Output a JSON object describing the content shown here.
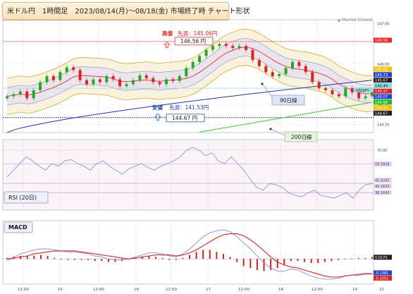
{
  "title": "米ドル円　1時間足　2023/08/14(月)～08/18(金) 市場終了時 チャート形状",
  "market_status": "Market Closed",
  "chart_data": [
    {
      "type": "candlestick",
      "instrument": "USDJPY",
      "x_ticks": [
        "12:00",
        "15",
        "12:00",
        "16",
        "12:00",
        "17",
        "12:00",
        "18",
        "12:00",
        "19",
        "21"
      ],
      "y_ticks": [
        147.0,
        146.0,
        145.0,
        144.5
      ],
      "ylim": [
        144.3,
        147.1
      ],
      "price_tags": [
        {
          "value": "146.56",
          "bg": "#ff2222",
          "fg": "#ffffff"
        },
        {
          "value": "145.82",
          "bg": "#f2c200",
          "fg": "#ffffff"
        },
        {
          "value": "145.73",
          "bg": "#2244cc",
          "fg": "#ffffff"
        },
        {
          "value": "145.67",
          "bg": "#222222",
          "fg": "#ffffff"
        },
        {
          "value": "145.40",
          "bg": "#88dddd",
          "fg": "#000000"
        },
        {
          "value": "145.37",
          "bg": "#dd2222",
          "fg": "#ffffff"
        },
        {
          "value": "145.07",
          "bg": "#2244cc",
          "fg": "#ffffff"
        },
        {
          "value": "144.96",
          "bg": "#22bb22",
          "fg": "#ffffff"
        },
        {
          "value": "144.92",
          "bg": "#f2c200",
          "fg": "#ffffff"
        },
        {
          "value": "144.67",
          "bg": "#222222",
          "fg": "#ffffff"
        }
      ],
      "symbol_label": "USDJPY",
      "high": {
        "label": "高値",
        "prev_week": "先週：145.06円",
        "value": "146.56 円",
        "price": 146.56
      },
      "low": {
        "label": "安値",
        "prev_week": "先週：141.53円",
        "value": "144.67 円",
        "price": 144.67
      },
      "callouts": {
        "ma90": "90日線",
        "ma200": "200日線"
      },
      "closes": [
        145.2,
        145.25,
        145.32,
        145.15,
        145.35,
        145.55,
        145.7,
        145.6,
        145.8,
        145.92,
        145.85,
        145.6,
        145.5,
        145.62,
        145.55,
        145.7,
        145.62,
        145.45,
        145.5,
        145.6,
        145.72,
        145.65,
        145.55,
        145.5,
        145.62,
        145.58,
        145.7,
        145.9,
        146.05,
        146.2,
        146.35,
        146.45,
        146.5,
        146.45,
        146.4,
        146.45,
        146.35,
        146.1,
        145.95,
        145.8,
        145.7,
        145.75,
        145.9,
        146.05,
        145.95,
        145.8,
        145.55,
        145.4,
        145.35,
        145.25,
        145.2,
        145.4,
        145.3,
        145.15,
        145.2,
        145.35
      ],
      "colors": {
        "up": "#22aa22",
        "down": "#dd2222",
        "ma_short": "#dd3333",
        "ma90": "#2233bb",
        "ma200": "#33cc33",
        "bb_outer": "#d4a830",
        "bb_mid": "#9999cc"
      }
    },
    {
      "type": "line",
      "title": "RSI (20日)",
      "y_ticks": [
        70.0
      ],
      "price_tags": [
        {
          "value": "59.5858",
          "bg": "#ddddee",
          "fg": "#662266"
        },
        {
          "value": "45.9265",
          "bg": "#ddddee",
          "fg": "#662266"
        },
        {
          "value": "45.1633",
          "bg": "#ddddee",
          "fg": "#662266"
        },
        {
          "value": "38.1643",
          "bg": "#ddddee",
          "fg": "#662266"
        }
      ],
      "ylim": [
        25,
        78
      ],
      "values": [
        50,
        55,
        60,
        65,
        62,
        58,
        55,
        60,
        58,
        62,
        63,
        60,
        58,
        55,
        60,
        62,
        58,
        55,
        52,
        56,
        58,
        60,
        57,
        55,
        58,
        60,
        62,
        65,
        70,
        72,
        70,
        66,
        68,
        62,
        60,
        65,
        60,
        55,
        48,
        42,
        40,
        45,
        44,
        42,
        38,
        36,
        35,
        38,
        40,
        36,
        35,
        34,
        36,
        38,
        34,
        40,
        44,
        45
      ],
      "reference_lines": [
        59.5858,
        45.1633,
        38.1643
      ],
      "color": "#8899cc"
    },
    {
      "type": "line",
      "title": "MACD",
      "price_tags": [
        {
          "value": "0.0170",
          "bg": "#222222",
          "fg": "#ffffff"
        },
        {
          "value": "-0.1381",
          "bg": "#2244cc",
          "fg": "#ffffff"
        },
        {
          "value": "-0.1551",
          "bg": "#dd2222",
          "fg": "#ffffff"
        }
      ],
      "ylim": [
        -0.25,
        0.38
      ],
      "macd": [
        -0.02,
        0.02,
        0.05,
        0.07,
        0.09,
        0.1,
        0.1,
        0.09,
        0.08,
        0.07,
        0.07,
        0.06,
        0.05,
        0.03,
        0.02,
        0.0,
        -0.01,
        -0.01,
        0.0,
        0.02,
        0.04,
        0.06,
        0.06,
        0.05,
        0.03,
        0.02,
        0.05,
        0.1,
        0.16,
        0.22,
        0.26,
        0.28,
        0.29,
        0.27,
        0.22,
        0.16,
        0.1,
        0.03,
        -0.04,
        -0.09,
        -0.12,
        -0.12,
        -0.1,
        -0.11,
        -0.14,
        -0.17,
        -0.19,
        -0.2,
        -0.2,
        -0.19,
        -0.17,
        -0.16,
        -0.15,
        -0.14,
        -0.14
      ],
      "signal": [
        0.0,
        0.01,
        0.02,
        0.03,
        0.05,
        0.06,
        0.07,
        0.08,
        0.08,
        0.08,
        0.08,
        0.07,
        0.06,
        0.05,
        0.04,
        0.03,
        0.02,
        0.01,
        0.0,
        0.01,
        0.02,
        0.03,
        0.04,
        0.04,
        0.04,
        0.03,
        0.04,
        0.06,
        0.09,
        0.13,
        0.17,
        0.21,
        0.24,
        0.25,
        0.25,
        0.23,
        0.19,
        0.14,
        0.08,
        0.02,
        -0.03,
        -0.06,
        -0.08,
        -0.09,
        -0.11,
        -0.13,
        -0.15,
        -0.17,
        -0.18,
        -0.18,
        -0.17,
        -0.16,
        -0.16,
        -0.15,
        -0.15
      ],
      "histogram": [
        0.01,
        0.02,
        0.03,
        0.03,
        0.03,
        0.04,
        0.03,
        0.01,
        0.0,
        -0.01,
        -0.01,
        -0.01,
        -0.01,
        -0.02,
        -0.02,
        -0.03,
        -0.03,
        -0.02,
        0.0,
        0.01,
        0.02,
        0.03,
        0.02,
        0.01,
        -0.01,
        -0.01,
        0.01,
        0.04,
        0.07,
        0.09,
        0.09,
        0.07,
        0.05,
        0.02,
        -0.03,
        -0.07,
        -0.09,
        -0.11,
        -0.12,
        -0.11,
        -0.09,
        -0.06,
        -0.02,
        -0.02,
        -0.03,
        -0.04,
        -0.04,
        -0.03,
        -0.02,
        -0.01,
        0.0,
        0.0,
        0.01,
        0.01,
        0.02
      ],
      "colors": {
        "macd": "#8888ee",
        "signal": "#dd2222",
        "hist_up": "#cc2222",
        "hist_down": "#cc2222"
      }
    }
  ]
}
